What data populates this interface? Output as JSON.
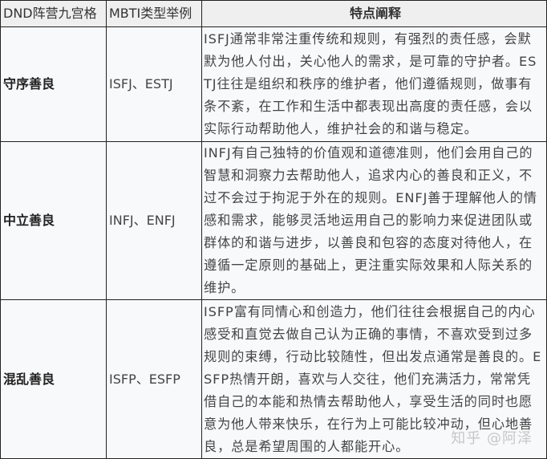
{
  "headers": [
    "DND阵营九宫格",
    "MBTI类型举例",
    "特点阐释"
  ],
  "rows": [
    {
      "alignment": "守序善良",
      "mbti": "ISFJ、ESTJ",
      "description": "ISFJ通常非常注重传统和规则，有强烈的责任感，会默默为他人付出，关心他人的需求，是可靠的守护者。ESTJ往往是组织和秩序的维护者，他们遵循规则，做事有条不紊，在工作和生活中都表现出高度的责任感，会以实际行动帮助他人，维护社会的和谐与稳定。"
    },
    {
      "alignment": "中立善良",
      "mbti": "INFJ、ENFJ",
      "description": "INFJ有自己独特的价值观和道德准则，他们会用自己的智慧和洞察力去帮助他人，追求内心的善良和正义，不过不会过于拘泥于外在的规则。ENFJ善于理解他人的情感和需求，能够灵活地运用自己的影响力来促进团队或群体的和谐与进步，以善良和包容的态度对待他人，在遵循一定原则的基础上，更注重实际效果和人际关系的维护。"
    },
    {
      "alignment": "混乱善良",
      "mbti": "ISFP、ESFP",
      "description": "ISFP富有同情心和创造力，他们往往会根据自己的内心感受和直觉去做自己认为正确的事情，不喜欢受到过多规则的束缚，行动比较随性，但出发点通常是善良的。ESFP热情开朗，喜欢与人交往，他们充满活力，常常凭借自己的本能和热情去帮助他人，享受生活的同时也愿意为他人带来快乐，在行为上可能比较冲动，但心地善良，总是希望周围的人都能开心。"
    }
  ],
  "watermark": "知乎 @阿泽"
}
